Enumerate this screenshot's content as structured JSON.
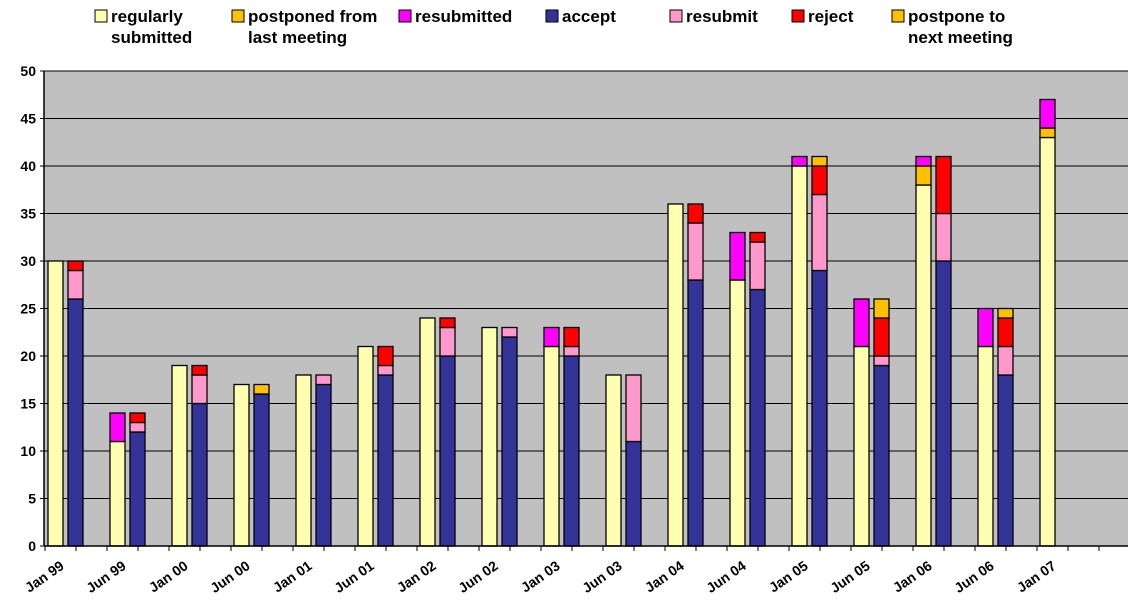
{
  "chart_data": {
    "type": "bar",
    "stacked": true,
    "grouped": true,
    "ylim": [
      0,
      50
    ],
    "yticks": [
      0,
      5,
      10,
      15,
      20,
      25,
      30,
      35,
      40,
      45,
      50
    ],
    "grid": true,
    "plot_background": "#C0C0C0",
    "legend_position": "top",
    "xtick_labels": [
      "Jan 99",
      "Jun 99",
      "Jan 00",
      "Jun 00",
      "Jan 01",
      "Jun 01",
      "Jan 02",
      "Jun 02",
      "Jan 03",
      "Jun 03",
      "Jan 04",
      "Jun 04",
      "Jan 05",
      "Jun 05",
      "Jan 06",
      "Jun 06",
      "Jan 07"
    ],
    "legend": [
      {
        "key": "regularly_submitted",
        "label": [
          "regularly",
          "submitted"
        ],
        "color": "#FFFFB0"
      },
      {
        "key": "postponed_from_last",
        "label": [
          "postponed from",
          "last meeting"
        ],
        "color": "#FFC000"
      },
      {
        "key": "resubmitted",
        "label": [
          "resubmitted"
        ],
        "color": "#FF00FF"
      },
      {
        "key": "accept",
        "label": [
          "accept"
        ],
        "color": "#333399"
      },
      {
        "key": "resubmit",
        "label": [
          "resubmit"
        ],
        "color": "#FF99CC"
      },
      {
        "key": "reject",
        "label": [
          "reject"
        ],
        "color": "#FF0000"
      },
      {
        "key": "postpone_to_next",
        "label": [
          "postpone to",
          "next meeting"
        ],
        "color": "#FFC000"
      }
    ],
    "submissions": {
      "series_order": [
        "regularly_submitted",
        "postponed_from_last",
        "resubmitted"
      ],
      "regularly_submitted": [
        30,
        11,
        19,
        17,
        18,
        21,
        24,
        23,
        21,
        18,
        36,
        28,
        40,
        21,
        38,
        21,
        43
      ],
      "postponed_from_last": [
        0,
        0,
        0,
        0,
        0,
        0,
        0,
        0,
        0,
        0,
        0,
        0,
        0,
        0,
        2,
        0,
        1
      ],
      "resubmitted": [
        0,
        3,
        0,
        0,
        0,
        0,
        0,
        0,
        2,
        0,
        0,
        5,
        1,
        5,
        1,
        4,
        3
      ]
    },
    "decisions": {
      "series_order": [
        "accept",
        "resubmit",
        "reject",
        "postpone_to_next"
      ],
      "accept": [
        26,
        12,
        15,
        16,
        17,
        18,
        20,
        22,
        20,
        11,
        28,
        27,
        29,
        19,
        30,
        18,
        null
      ],
      "resubmit": [
        3,
        1,
        3,
        0,
        1,
        1,
        3,
        1,
        1,
        7,
        6,
        5,
        8,
        1,
        5,
        3,
        null
      ],
      "reject": [
        1,
        1,
        1,
        0,
        0,
        2,
        1,
        0,
        2,
        0,
        2,
        1,
        3,
        4,
        6,
        3,
        null
      ],
      "postpone_to_next": [
        0,
        0,
        0,
        1,
        0,
        0,
        0,
        0,
        0,
        0,
        0,
        0,
        1,
        2,
        0,
        1,
        null
      ]
    }
  }
}
